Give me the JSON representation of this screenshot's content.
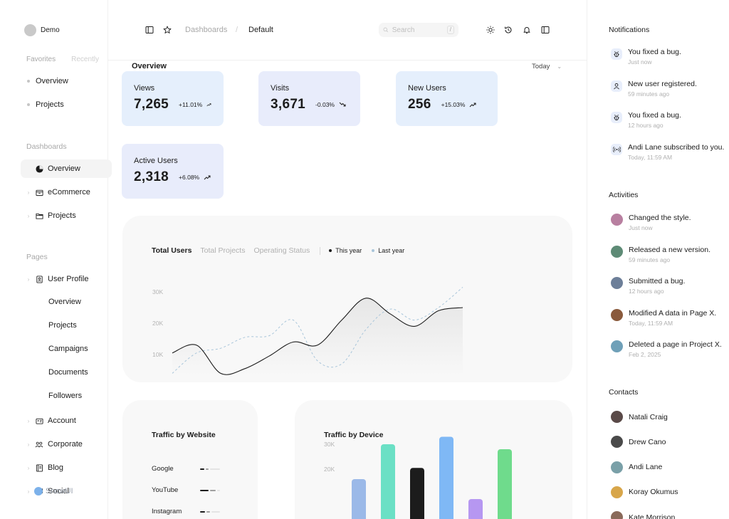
{
  "sidebar": {
    "user_name": "Demo",
    "tabs": [
      "Favorites",
      "Recently"
    ],
    "favorites": [
      "Overview",
      "Projects"
    ],
    "dashboards_title": "Dashboards",
    "dashboards": [
      {
        "label": "Overview",
        "icon": "pie-chart-icon",
        "active": true
      },
      {
        "label": "eCommerce",
        "icon": "shopping-bag-icon"
      },
      {
        "label": "Projects",
        "icon": "folder-icon"
      }
    ],
    "pages_title": "Pages",
    "user_profile": {
      "label": "User Profile",
      "icon": "user-profile-icon",
      "children": [
        "Overview",
        "Projects",
        "Campaigns",
        "Documents",
        "Followers"
      ]
    },
    "more_pages": [
      {
        "label": "Account",
        "icon": "id-card-icon"
      },
      {
        "label": "Corporate",
        "icon": "users-icon"
      },
      {
        "label": "Blog",
        "icon": "notebook-icon"
      },
      {
        "label": "Social",
        "icon": "chat-icon"
      }
    ],
    "brand": "SnowUI"
  },
  "topbar": {
    "breadcrumb": [
      "Dashboards",
      "Default"
    ],
    "search_placeholder": "Search",
    "search_shortcut": "/",
    "icons": [
      "sun-icon",
      "history-icon",
      "bell-icon",
      "sidebar-toggle-icon"
    ]
  },
  "overview": {
    "title": "Overview",
    "range": "Today",
    "cards": [
      {
        "label": "Views",
        "value": "7,265",
        "change": "+11.01%",
        "trend": "up"
      },
      {
        "label": "Visits",
        "value": "3,671",
        "change": "-0.03%",
        "trend": "down"
      },
      {
        "label": "New Users",
        "value": "256",
        "change": "+15.03%",
        "trend": "up"
      },
      {
        "label": "Active Users",
        "value": "2,318",
        "change": "+6.08%",
        "trend": "up"
      }
    ]
  },
  "chart_tabs": [
    "Total Users",
    "Total Projects",
    "Operating Status"
  ],
  "chart_data": [
    {
      "type": "line",
      "ylim": [
        0,
        35000
      ],
      "yticks": [
        "10K",
        "20K",
        "30K"
      ],
      "x": [
        0,
        1,
        2,
        3,
        4,
        5,
        6,
        7,
        8,
        9,
        10,
        11,
        12
      ],
      "series": [
        {
          "name": "This year",
          "color": "#1c1c1c",
          "values": [
            10500,
            13000,
            4000,
            5500,
            9500,
            14000,
            13000,
            21000,
            28000,
            23000,
            19000,
            24000,
            25000
          ]
        },
        {
          "name": "Last year",
          "color": "#a8c5da",
          "values": [
            4000,
            10500,
            12000,
            15500,
            16000,
            21000,
            8000,
            7000,
            18000,
            24500,
            21000,
            25000,
            31500
          ]
        }
      ]
    },
    {
      "type": "bar",
      "title": "Traffic by Device",
      "ylim": [
        0,
        35000
      ],
      "yticks": [
        "20K",
        "30K"
      ],
      "values": [
        16000,
        30000,
        20500,
        33000,
        8000,
        28000
      ],
      "colors": [
        "#9bb9e8",
        "#6be0c5",
        "#1c1c1c",
        "#7fb8f5",
        "#b697f1",
        "#6fdb8c"
      ]
    }
  ],
  "traffic_website": {
    "title": "Traffic by Website",
    "sites": [
      {
        "name": "Google",
        "level": 0.45
      },
      {
        "name": "YouTube",
        "level": 0.8
      },
      {
        "name": "Instagram",
        "level": 0.5
      }
    ]
  },
  "notifications": {
    "title": "Notifications",
    "items": [
      {
        "text": "You fixed a bug.",
        "time": "Just now",
        "icon": "bug-icon"
      },
      {
        "text": "New user registered.",
        "time": "59 minutes ago",
        "icon": "user-icon"
      },
      {
        "text": "You fixed a bug.",
        "time": "12 hours ago",
        "icon": "bug-icon"
      },
      {
        "text": "Andi Lane subscribed to you.",
        "time": "Today, 11:59 AM",
        "icon": "broadcast-icon"
      }
    ]
  },
  "activities": {
    "title": "Activities",
    "items": [
      {
        "text": "Changed the style.",
        "time": "Just now",
        "color": "#b87fa0"
      },
      {
        "text": "Released a new version.",
        "time": "59 minutes ago",
        "color": "#5e8b76"
      },
      {
        "text": "Submitted a bug.",
        "time": "12 hours ago",
        "color": "#6d7f99"
      },
      {
        "text": "Modified A data in Page X.",
        "time": "Today, 11:59 AM",
        "color": "#8a5a3c"
      },
      {
        "text": "Deleted a page in Project X.",
        "time": "Feb 2, 2025",
        "color": "#6fa0b8"
      }
    ]
  },
  "contacts": {
    "title": "Contacts",
    "items": [
      {
        "name": "Natali Craig",
        "color": "#5a4a48"
      },
      {
        "name": "Drew Cano",
        "color": "#4a4a4a"
      },
      {
        "name": "Andi Lane",
        "color": "#7aa0a8"
      },
      {
        "name": "Koray Okumus",
        "color": "#d8a64a"
      },
      {
        "name": "Kate Morrison",
        "color": "#8a6a5a"
      }
    ]
  }
}
